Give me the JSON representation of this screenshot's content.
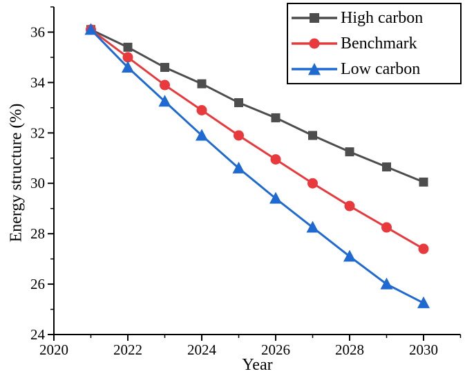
{
  "figure": {
    "background": "#ffffff",
    "axis_color": "#000000"
  },
  "chart_data": {
    "type": "line",
    "title": "",
    "xlabel": "Year",
    "ylabel": "Energy structure (%)",
    "grid": false,
    "legend_position": "top-right",
    "x": [
      2021,
      2022,
      2023,
      2024,
      2025,
      2026,
      2027,
      2028,
      2029,
      2030
    ],
    "series": [
      {
        "name": "High carbon",
        "color": "#4d4d4d",
        "marker": "square",
        "values": [
          36.1,
          35.4,
          34.6,
          33.95,
          33.2,
          32.6,
          31.9,
          31.25,
          30.65,
          30.05
        ]
      },
      {
        "name": "Benchmark",
        "color": "#e8393c",
        "marker": "circle",
        "values": [
          36.1,
          35.0,
          33.9,
          32.9,
          31.9,
          30.95,
          30.0,
          29.1,
          28.25,
          27.4
        ]
      },
      {
        "name": "Low carbon",
        "color": "#1e6ad2",
        "marker": "triangle",
        "values": [
          36.1,
          34.6,
          33.25,
          31.9,
          30.6,
          29.4,
          28.25,
          27.1,
          26.0,
          25.25
        ]
      }
    ],
    "x_axis": {
      "min": 2020,
      "max": 2031,
      "major_ticks": [
        2020,
        2022,
        2024,
        2026,
        2028,
        2030
      ],
      "minor_ticks": [
        2021,
        2023,
        2025,
        2027,
        2029,
        2031
      ]
    },
    "y_axis": {
      "min": 24,
      "max": 37,
      "major_ticks": [
        24,
        26,
        28,
        30,
        32,
        34,
        36
      ],
      "minor_ticks": [
        25,
        27,
        29,
        31,
        33,
        35,
        37
      ]
    }
  }
}
